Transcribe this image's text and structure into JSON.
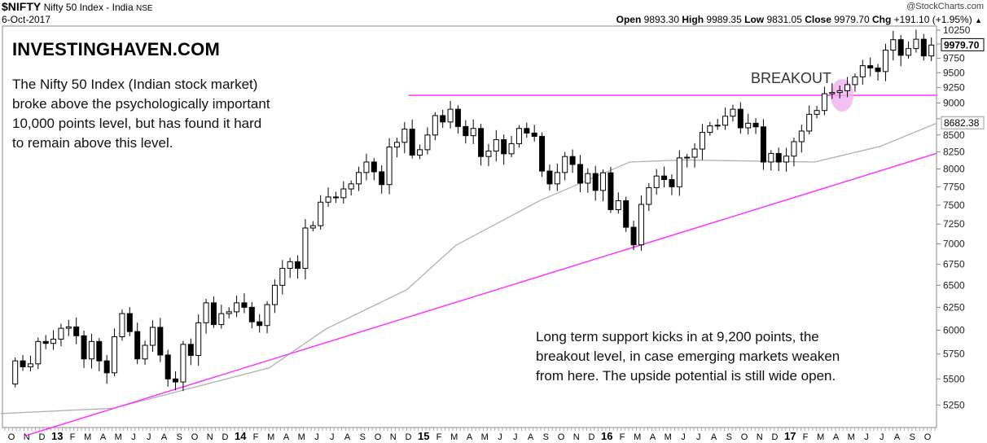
{
  "header": {
    "symbol": "$NIFTY",
    "name": "Nifty 50 Index - India",
    "exchange": "NSE",
    "date": "6-Oct-2017",
    "watermark": "@StockCharts.com",
    "open_label": "Open",
    "open": "9893.30",
    "high_label": "High",
    "high": "9989.35",
    "low_label": "Low",
    "low": "9831.05",
    "close_label": "Close",
    "close": "9979.70",
    "chg_label": "Chg",
    "chg": "+191.10 (+1.95%)",
    "chg_arrow": "▲"
  },
  "annotations": {
    "brand": "INVESTINGHAVEN.COM",
    "top_note": [
      "The Nifty 50 Index (Indian stock market)",
      "broke above the psychologically important",
      "10,000 points level, but has found it hard",
      "to remain above this level."
    ],
    "breakout": "BREAKOUT",
    "bottom_note": [
      "Long term support kicks in at 9,200 points, the",
      "breakout level, in case emerging markets weaken",
      "from here. The upside potential is still wide open."
    ]
  },
  "colors": {
    "trendline": "#ff33ff",
    "ma": "#b0b0b0",
    "highlight": "#f0b0f0"
  },
  "chart_data": {
    "type": "candlestick",
    "scale": "log",
    "ylim": [
      5100,
      10300
    ],
    "yticks": [
      10250,
      10000,
      9750,
      9500,
      9250,
      9000,
      8750,
      8500,
      8250,
      8000,
      7750,
      7500,
      7250,
      7000,
      6750,
      6500,
      6250,
      6000,
      5750,
      5500,
      5250
    ],
    "x_start": "Oct 2012",
    "period": "half-month",
    "first_open": 5450,
    "closes": [
      5680,
      5620,
      5650,
      5880,
      5860,
      5905,
      6020,
      6035,
      5940,
      5700,
      5880,
      5680,
      5560,
      5930,
      6180,
      5985,
      5700,
      5840,
      6030,
      5740,
      5500,
      5470,
      5850,
      5735,
      6080,
      6300,
      6060,
      6180,
      6200,
      6300,
      6250,
      6090,
      6050,
      6280,
      6500,
      6700,
      6780,
      6700,
      7200,
      7230,
      7540,
      7610,
      7600,
      7720,
      7790,
      7950,
      8100,
      7960,
      7780,
      8320,
      8390,
      8590,
      8200,
      8280,
      8500,
      8800,
      8700,
      8900,
      8630,
      8490,
      8600,
      8180,
      8260,
      8430,
      8220,
      8370,
      8600,
      8530,
      8480,
      7970,
      7790,
      7950,
      8180,
      8065,
      7800,
      7935,
      7700,
      7946,
      7440,
      7560,
      7210,
      6987,
      7510,
      7738,
      7900,
      7850,
      7750,
      8160,
      8170,
      8290,
      8540,
      8640,
      8650,
      8790,
      8900,
      8610,
      8680,
      8625,
      8100,
      8225,
      8100,
      8186,
      8400,
      8560,
      8820,
      8880,
      9150,
      9170,
      9200,
      9300,
      9430,
      9620,
      9580,
      9520,
      9890,
      10077,
      9800,
      9918,
      10085,
      9789,
      9980
    ],
    "x_labels": [
      {
        "t": "O",
        "m": 0
      },
      {
        "t": "N",
        "m": 1
      },
      {
        "t": "D",
        "m": 2
      },
      {
        "t": "13",
        "m": 3,
        "year": true
      },
      {
        "t": "F",
        "m": 4
      },
      {
        "t": "M",
        "m": 5
      },
      {
        "t": "A",
        "m": 6
      },
      {
        "t": "M",
        "m": 7
      },
      {
        "t": "J",
        "m": 8
      },
      {
        "t": "J",
        "m": 9
      },
      {
        "t": "A",
        "m": 10
      },
      {
        "t": "S",
        "m": 11
      },
      {
        "t": "O",
        "m": 12
      },
      {
        "t": "N",
        "m": 13
      },
      {
        "t": "D",
        "m": 14
      },
      {
        "t": "14",
        "m": 15,
        "year": true
      },
      {
        "t": "F",
        "m": 16
      },
      {
        "t": "M",
        "m": 17
      },
      {
        "t": "A",
        "m": 18
      },
      {
        "t": "M",
        "m": 19
      },
      {
        "t": "J",
        "m": 20
      },
      {
        "t": "J",
        "m": 21
      },
      {
        "t": "A",
        "m": 22
      },
      {
        "t": "S",
        "m": 23
      },
      {
        "t": "O",
        "m": 24
      },
      {
        "t": "N",
        "m": 25
      },
      {
        "t": "D",
        "m": 26
      },
      {
        "t": "15",
        "m": 27,
        "year": true
      },
      {
        "t": "F",
        "m": 28
      },
      {
        "t": "M",
        "m": 29
      },
      {
        "t": "A",
        "m": 30
      },
      {
        "t": "M",
        "m": 31
      },
      {
        "t": "J",
        "m": 32
      },
      {
        "t": "J",
        "m": 33
      },
      {
        "t": "A",
        "m": 34
      },
      {
        "t": "S",
        "m": 35
      },
      {
        "t": "O",
        "m": 36
      },
      {
        "t": "N",
        "m": 37
      },
      {
        "t": "D",
        "m": 38
      },
      {
        "t": "16",
        "m": 39,
        "year": true
      },
      {
        "t": "F",
        "m": 40
      },
      {
        "t": "M",
        "m": 41
      },
      {
        "t": "A",
        "m": 42
      },
      {
        "t": "M",
        "m": 43
      },
      {
        "t": "J",
        "m": 44
      },
      {
        "t": "J",
        "m": 45
      },
      {
        "t": "A",
        "m": 46
      },
      {
        "t": "S",
        "m": 47
      },
      {
        "t": "O",
        "m": 48
      },
      {
        "t": "N",
        "m": 49
      },
      {
        "t": "D",
        "m": 50
      },
      {
        "t": "17",
        "m": 51,
        "year": true
      },
      {
        "t": "F",
        "m": 52
      },
      {
        "t": "M",
        "m": 53
      },
      {
        "t": "A",
        "m": 54
      },
      {
        "t": "M",
        "m": 55
      },
      {
        "t": "J",
        "m": 56
      },
      {
        "t": "J",
        "m": 57
      },
      {
        "t": "A",
        "m": 58
      },
      {
        "t": "S",
        "m": 59
      },
      {
        "t": "O",
        "m": 60
      }
    ],
    "moving_average": {
      "value_label": "8682.38",
      "points": [
        [
          -0.7,
          5170
        ],
        [
          6.7,
          5220
        ],
        [
          11.5,
          5400
        ],
        [
          16.9,
          5610
        ],
        [
          20.6,
          6013
        ],
        [
          25.9,
          6450
        ],
        [
          29.1,
          6980
        ],
        [
          34.6,
          7560
        ],
        [
          40.5,
          8100
        ],
        [
          44,
          8130
        ],
        [
          52.6,
          8100
        ],
        [
          56.9,
          8330
        ],
        [
          60.6,
          8682
        ]
      ]
    },
    "last_price_label": "9979.70",
    "resistance": {
      "value": 9125,
      "from_month": 26,
      "to_month": 60.6
    },
    "support": {
      "from": [
        1.9,
        5011
      ],
      "to": [
        60.6,
        8227
      ]
    },
    "breakout_marker": {
      "month": 54.4,
      "value": 9125
    }
  }
}
